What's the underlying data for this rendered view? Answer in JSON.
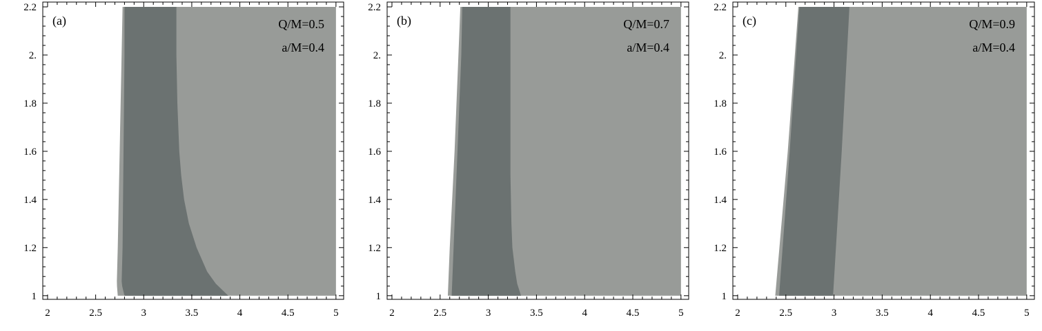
{
  "colors": {
    "background": "#ffffff",
    "light_region": "#989b98",
    "dark_region": "#6b7271",
    "frame": "#000000"
  },
  "chart_data": [
    {
      "type": "area",
      "panel_label": "(a)",
      "annotations": [
        "Q/M=0.5",
        "a/M=0.4"
      ],
      "xlim": [
        1.95,
        5.08
      ],
      "ylim": [
        0.985,
        2.22
      ],
      "xticks": [
        2,
        2.5,
        3,
        3.5,
        4,
        4.5,
        5
      ],
      "xtick_labels": [
        "2",
        "2.5",
        "3",
        "3.5",
        "4",
        "4.5",
        "5"
      ],
      "yticks": [
        1,
        1.2,
        1.4,
        1.6,
        1.8,
        2.0,
        2.2
      ],
      "ytick_labels": [
        "1",
        "1.2",
        "1.4",
        "1.6",
        "1.8",
        "2.",
        "2.2"
      ],
      "data_y_range": [
        1.0,
        2.2
      ],
      "data_x_max": 5.0,
      "regions": [
        {
          "name": "outer boundary",
          "y": [
            1.0,
            1.05,
            1.2,
            1.6,
            2.0,
            2.2
          ],
          "x": [
            2.73,
            2.72,
            2.73,
            2.75,
            2.77,
            2.78
          ]
        },
        {
          "name": "dark band inner edge",
          "y": [
            1.0,
            1.05,
            1.2,
            1.6,
            2.0,
            2.2
          ],
          "x": [
            2.8,
            2.77,
            2.78,
            2.79,
            2.8,
            2.8
          ]
        },
        {
          "name": "dark band outer edge",
          "y": [
            1.0,
            1.05,
            1.1,
            1.2,
            1.3,
            1.4,
            1.5,
            1.6,
            1.8,
            2.0,
            2.2
          ],
          "x": [
            3.88,
            3.75,
            3.66,
            3.55,
            3.47,
            3.42,
            3.39,
            3.37,
            3.35,
            3.34,
            3.34
          ]
        }
      ]
    },
    {
      "type": "area",
      "panel_label": "(b)",
      "annotations": [
        "Q/M=0.7",
        "a/M=0.4"
      ],
      "xlim": [
        1.95,
        5.08
      ],
      "ylim": [
        0.985,
        2.22
      ],
      "xticks": [
        2,
        2.5,
        3,
        3.5,
        4,
        4.5,
        5
      ],
      "xtick_labels": [
        "2",
        "2.5",
        "3",
        "3.5",
        "4",
        "4.5",
        "5"
      ],
      "yticks": [
        1,
        1.2,
        1.4,
        1.6,
        1.8,
        2.0,
        2.2
      ],
      "ytick_labels": [
        "1",
        "1.2",
        "1.4",
        "1.6",
        "1.8",
        "2.",
        "2.2"
      ],
      "data_y_range": [
        1.0,
        2.2
      ],
      "data_x_max": 5.0,
      "regions": [
        {
          "name": "outer boundary",
          "y": [
            1.0,
            1.2,
            1.6,
            2.0,
            2.2
          ],
          "x": [
            2.58,
            2.6,
            2.65,
            2.69,
            2.71
          ]
        },
        {
          "name": "dark band inner edge",
          "y": [
            1.0,
            1.2,
            1.6,
            2.0,
            2.2
          ],
          "x": [
            2.62,
            2.64,
            2.68,
            2.72,
            2.73
          ]
        },
        {
          "name": "dark band outer edge",
          "y": [
            1.0,
            1.05,
            1.1,
            1.2,
            1.3,
            1.5,
            2.0,
            2.2
          ],
          "x": [
            3.34,
            3.3,
            3.28,
            3.25,
            3.24,
            3.23,
            3.23,
            3.23
          ]
        }
      ]
    },
    {
      "type": "area",
      "panel_label": "(c)",
      "annotations": [
        "Q/M=0.9",
        "a/M=0.4"
      ],
      "xlim": [
        1.95,
        5.08
      ],
      "ylim": [
        0.985,
        2.22
      ],
      "xticks": [
        2,
        2.5,
        3,
        3.5,
        4,
        4.5,
        5
      ],
      "xtick_labels": [
        "2",
        "2.5",
        "3",
        "3.5",
        "4",
        "4.5",
        "5"
      ],
      "yticks": [
        1,
        1.2,
        1.4,
        1.6,
        1.8,
        2.0,
        2.2
      ],
      "ytick_labels": [
        "1",
        "1.2",
        "1.4",
        "1.6",
        "1.8",
        "2.",
        "2.2"
      ],
      "data_y_range": [
        1.0,
        2.2
      ],
      "data_x_max": 5.0,
      "regions": [
        {
          "name": "outer boundary",
          "y": [
            1.0,
            1.6,
            2.2
          ],
          "x": [
            2.39,
            2.52,
            2.63
          ]
        },
        {
          "name": "dark band inner edge",
          "y": [
            1.0,
            1.6,
            2.2
          ],
          "x": [
            2.43,
            2.54,
            2.64
          ]
        },
        {
          "name": "dark band outer edge",
          "y": [
            1.0,
            1.6,
            2.2
          ],
          "x": [
            2.99,
            3.08,
            3.16
          ]
        }
      ]
    }
  ]
}
